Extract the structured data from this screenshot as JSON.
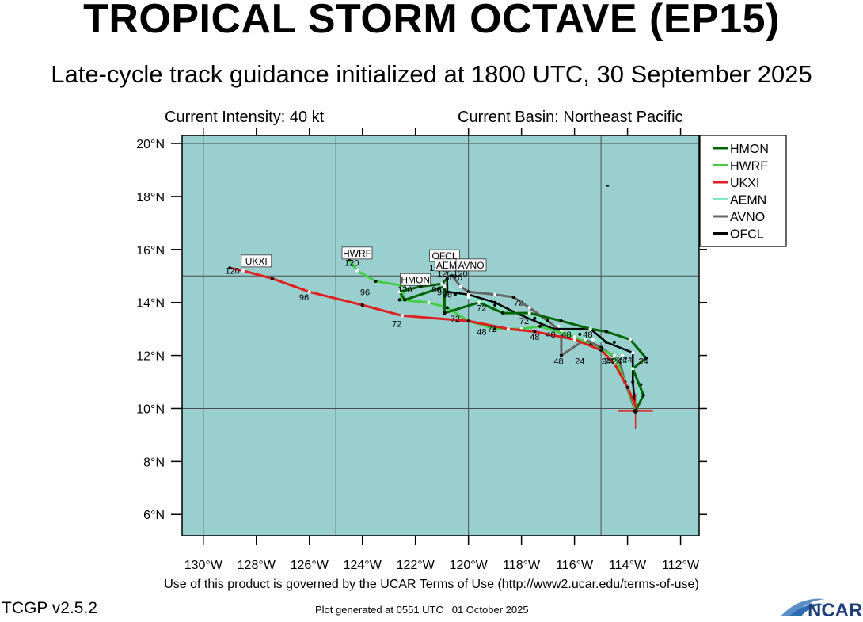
{
  "header": {
    "title": "TROPICAL STORM OCTAVE (EP15)",
    "subtitle": "Late-cycle track guidance initialized at 1800 UTC, 30 September 2025",
    "intensity": "Current Intensity: 40 kt",
    "basin": "Current Basin: Northeast Pacific"
  },
  "footer": {
    "terms": "Use of this product is governed by the UCAR Terms of Use (http://www2.ucar.edu/terms-of-use)",
    "version": "TCGP v2.5.2",
    "generated": "Plot generated at 0551 UTC   01 October 2025",
    "logo_text": "NCAR"
  },
  "colors": {
    "ocean": "#99cfcf",
    "grid": "#4d4d4d",
    "HMON": "#006400",
    "HWRF": "#44cc44",
    "UKXI": "#e02020",
    "AEMN": "#7fe8c8",
    "AVNO": "#666666",
    "OFCL": "#000000",
    "current_position": "#e02020"
  },
  "chart_data": {
    "type": "line",
    "xlabel": "",
    "ylabel": "",
    "xlim": [
      -130.8,
      -111.3
    ],
    "ylim": [
      5.2,
      20.3
    ],
    "x_ticks": [
      -130,
      -128,
      -126,
      -124,
      -122,
      -120,
      -118,
      -116,
      -114,
      -112
    ],
    "x_tick_labels": [
      "130°W",
      "128°W",
      "126°W",
      "124°W",
      "122°W",
      "120°W",
      "118°W",
      "116°W",
      "114°W",
      "112°W"
    ],
    "y_ticks": [
      6,
      8,
      10,
      12,
      14,
      16,
      18,
      20
    ],
    "y_tick_labels": [
      "6°N",
      "8°N",
      "10°N",
      "12°N",
      "14°N",
      "16°N",
      "18°N",
      "20°N"
    ],
    "grid_x": [
      -130,
      -125,
      -120,
      -115
    ],
    "grid_y": [
      10,
      15,
      20
    ],
    "legend": "top-right",
    "current_position": {
      "lon": -113.7,
      "lat": 9.9
    },
    "series": [
      {
        "name": "AEMN",
        "points": [
          [
            -113.7,
            9.9
          ],
          [
            -113.5,
            10.9
          ],
          [
            -114.2,
            12.0
          ],
          [
            -114.5,
            12.5
          ],
          [
            -115.3,
            12.6
          ],
          [
            -115.8,
            12.8
          ],
          [
            -116.6,
            13.1
          ],
          [
            -117.5,
            13.4
          ],
          [
            -118.2,
            13.6
          ],
          [
            -119.0,
            13.9
          ],
          [
            -120.0,
            14.2
          ],
          [
            -120.5,
            14.3
          ],
          [
            -120.8,
            14.8
          ]
        ],
        "labels": []
      },
      {
        "name": "AVNO",
        "points": [
          [
            -113.7,
            9.9
          ],
          [
            -114.1,
            11.0
          ],
          [
            -114.3,
            11.8
          ],
          [
            -115.0,
            12.3
          ],
          [
            -115.6,
            12.6
          ],
          [
            -116.5,
            12.0
          ],
          [
            -116.5,
            12.9
          ],
          [
            -117.0,
            13.3
          ],
          [
            -117.7,
            13.8
          ],
          [
            -118.3,
            14.2
          ],
          [
            -119.0,
            14.3
          ],
          [
            -120.0,
            14.4
          ],
          [
            -120.3,
            14.6
          ],
          [
            -120.6,
            15.0
          ]
        ],
        "labels": [
          {
            "text": "24",
            "lon": -115.8,
            "lat": 11.8
          },
          {
            "text": "48",
            "lon": -116.6,
            "lat": 11.8
          },
          {
            "text": "72",
            "lon": -118.1,
            "lat": 14.0
          },
          {
            "text": "120",
            "lon": -120.3,
            "lat": 15.1
          }
        ]
      },
      {
        "name": "OFCL",
        "points": [
          [
            -113.7,
            9.9
          ],
          [
            -113.8,
            11.0
          ],
          [
            -113.8,
            12.1
          ],
          [
            -114.8,
            12.5
          ],
          [
            -115.4,
            13.0
          ],
          [
            -116.8,
            13.0
          ],
          [
            -118.2,
            13.6
          ],
          [
            -119.0,
            14.0
          ],
          [
            -120.0,
            14.3
          ],
          [
            -120.8,
            14.4
          ],
          [
            -120.8,
            14.9
          ]
        ],
        "labels": [
          {
            "text": "24",
            "lon": -114.2,
            "lat": 11.85
          },
          {
            "text": "48",
            "lon": -115.5,
            "lat": 12.8
          },
          {
            "text": "72",
            "lon": -117.9,
            "lat": 13.3
          },
          {
            "text": "96",
            "lon": -121.0,
            "lat": 14.4
          },
          {
            "text": "120",
            "lon": -120.9,
            "lat": 15.1
          }
        ]
      },
      {
        "name": "HWRF",
        "points": [
          [
            -113.7,
            10.0
          ],
          [
            -114.1,
            11.0
          ],
          [
            -114.5,
            12.0
          ],
          [
            -115.4,
            12.4
          ],
          [
            -116.0,
            12.7
          ],
          [
            -117.3,
            13.1
          ],
          [
            -118.0,
            13.0
          ],
          [
            -119.0,
            13.0
          ],
          [
            -120.0,
            13.3
          ],
          [
            -120.8,
            13.8
          ],
          [
            -121.5,
            14.0
          ],
          [
            -122.6,
            14.1
          ],
          [
            -122.3,
            14.6
          ],
          [
            -123.5,
            14.8
          ],
          [
            -124.2,
            15.2
          ],
          [
            -124.5,
            15.6
          ]
        ],
        "labels": [
          {
            "text": "24",
            "lon": -114.8,
            "lat": 11.8
          },
          {
            "text": "48",
            "lon": -117.5,
            "lat": 12.7
          },
          {
            "text": "96",
            "lon": -123.9,
            "lat": 14.4
          },
          {
            "text": "120",
            "lon": -124.4,
            "lat": 15.5
          }
        ]
      },
      {
        "name": "HMON",
        "points": [
          [
            -113.7,
            9.9
          ],
          [
            -113.4,
            10.5
          ],
          [
            -113.8,
            11.5
          ],
          [
            -113.3,
            11.9
          ],
          [
            -113.9,
            12.6
          ],
          [
            -114.8,
            12.9
          ],
          [
            -115.4,
            13.0
          ],
          [
            -116.5,
            13.3
          ],
          [
            -117.7,
            13.6
          ],
          [
            -118.7,
            13.6
          ],
          [
            -119.6,
            14.0
          ],
          [
            -120.9,
            13.6
          ],
          [
            -120.9,
            14.6
          ],
          [
            -122.4,
            14.1
          ],
          [
            -122.6,
            14.4
          ],
          [
            -121.8,
            14.6
          ],
          [
            -121.0,
            14.7
          ],
          [
            -120.8,
            14.9
          ]
        ],
        "labels": [
          {
            "text": "24",
            "lon": -113.4,
            "lat": 11.8
          },
          {
            "text": "48",
            "lon": -116.9,
            "lat": 12.8
          },
          {
            "text": "72",
            "lon": -119.5,
            "lat": 13.8
          },
          {
            "text": "96",
            "lon": -121.2,
            "lat": 14.5
          },
          {
            "text": "120",
            "lon": -122.4,
            "lat": 14.5
          }
        ]
      },
      {
        "name": "UKXI",
        "points": [
          [
            -113.7,
            10.1
          ],
          [
            -114.0,
            10.8
          ],
          [
            -114.5,
            11.7
          ],
          [
            -115.0,
            12.2
          ],
          [
            -116.0,
            12.6
          ],
          [
            -117.5,
            12.9
          ],
          [
            -118.5,
            13.0
          ],
          [
            -120.0,
            13.3
          ],
          [
            -122.5,
            13.5
          ],
          [
            -124.0,
            13.9
          ],
          [
            -126.0,
            14.4
          ],
          [
            -127.4,
            14.9
          ],
          [
            -128.5,
            15.2
          ],
          [
            -129.0,
            15.3
          ]
        ],
        "labels": [
          {
            "text": "24",
            "lon": -114.4,
            "lat": 11.8
          },
          {
            "text": "48",
            "lon": -119.5,
            "lat": 12.9
          },
          {
            "text": "72",
            "lon": -122.7,
            "lat": 13.2
          },
          {
            "text": "96",
            "lon": -126.2,
            "lat": 14.2
          },
          {
            "text": "120",
            "lon": -128.9,
            "lat": 15.2
          }
        ]
      }
    ],
    "extra_labels": [
      {
        "text": "24",
        "lon": -114.7,
        "lat": 11.8
      },
      {
        "text": "24",
        "lon": -114.0,
        "lat": 11.85
      },
      {
        "text": "48",
        "lon": -116.3,
        "lat": 12.8
      },
      {
        "text": "72",
        "lon": -120.5,
        "lat": 13.4
      },
      {
        "text": "72",
        "lon": -119.1,
        "lat": 13.0
      },
      {
        "text": "96",
        "lon": -120.8,
        "lat": 14.3
      },
      {
        "text": "120",
        "lon": -121.2,
        "lat": 15.3
      },
      {
        "text": "120",
        "lon": -120.5,
        "lat": 14.95
      }
    ],
    "end_boxes": [
      {
        "text": "UKXI",
        "lon": -128.0,
        "lat": 15.55
      },
      {
        "text": "HWRF",
        "lon": -124.2,
        "lat": 15.85
      },
      {
        "text": "OFCL",
        "lon": -120.9,
        "lat": 15.75
      },
      {
        "text": "AEMN",
        "lon": -120.7,
        "lat": 15.4
      },
      {
        "text": "AVNO",
        "lon": -119.9,
        "lat": 15.4
      },
      {
        "text": "HMON",
        "lon": -122.0,
        "lat": 14.85
      }
    ]
  }
}
